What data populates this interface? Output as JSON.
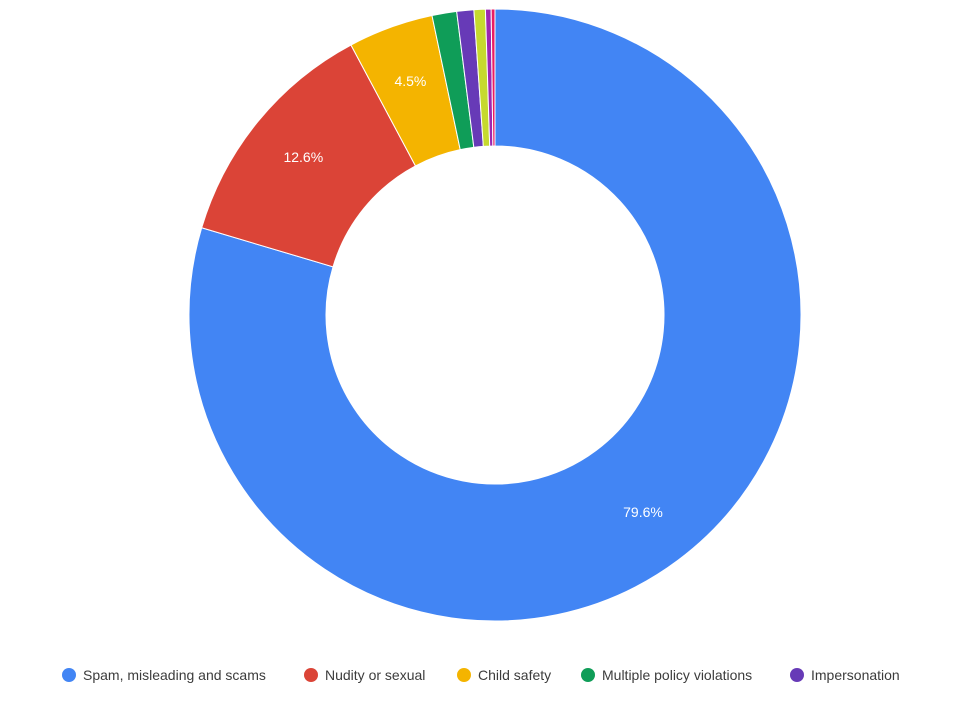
{
  "chart_data": {
    "type": "pie",
    "donut": true,
    "title": "",
    "slices": [
      {
        "label": "Spam, misleading and scams",
        "value": 79.6,
        "color": "#4285f4",
        "data_label": "79.6%"
      },
      {
        "label": "Nudity or sexual",
        "value": 12.6,
        "color": "#db4437",
        "data_label": "12.6%"
      },
      {
        "label": "Child safety",
        "value": 4.5,
        "color": "#f4b400",
        "data_label": "4.5%"
      },
      {
        "label": "Multiple policy violations",
        "value": 1.3,
        "color": "#0f9d58",
        "data_label": ""
      },
      {
        "label": "Impersonation",
        "value": 0.9,
        "color": "#673ab7",
        "data_label": ""
      },
      {
        "label": "",
        "value": 0.6,
        "color": "#c6d92e",
        "data_label": ""
      },
      {
        "label": "",
        "value": 0.3,
        "color": "#9c27b0",
        "data_label": ""
      },
      {
        "label": "",
        "value": 0.2,
        "color": "#e91e63",
        "data_label": ""
      }
    ],
    "legend": {
      "position": "bottom",
      "items": [
        {
          "label": "Spam, misleading and scams",
          "color": "#4285f4"
        },
        {
          "label": "Nudity or sexual",
          "color": "#db4437"
        },
        {
          "label": "Child safety",
          "color": "#f4b400"
        },
        {
          "label": "Multiple policy violations",
          "color": "#0f9d58"
        },
        {
          "label": "Impersonation",
          "color": "#673ab7"
        }
      ]
    }
  }
}
